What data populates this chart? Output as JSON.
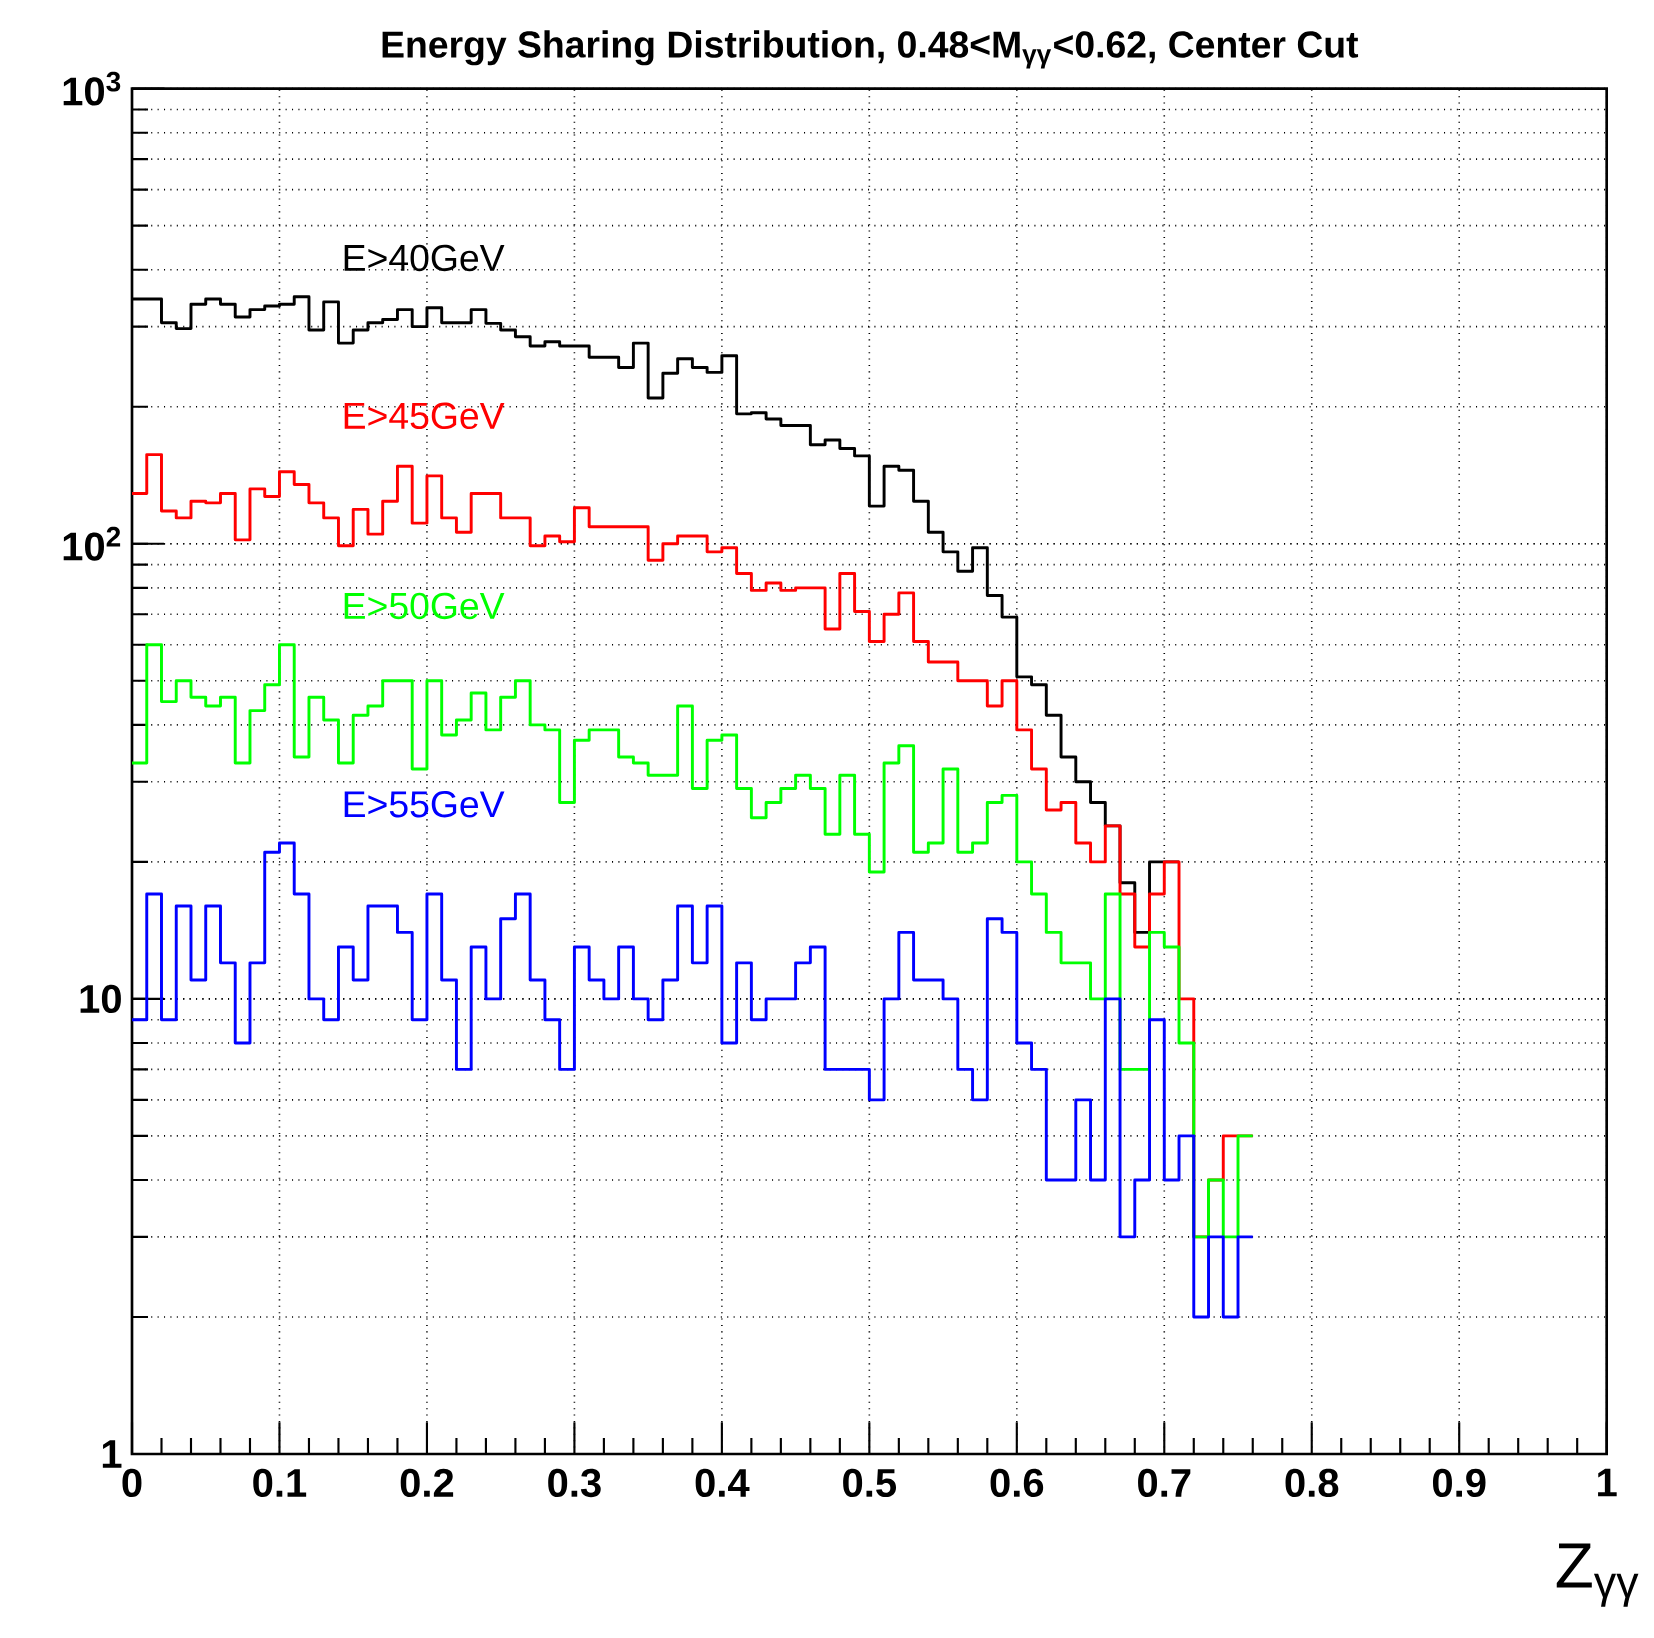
{
  "chart_data": {
    "type": "histogram",
    "title": "Energy Sharing Distribution,  0.48<M$_{γγ}$<0.62, Center Cut",
    "xlabel": "Z$_{γγ}$",
    "bins": [
      0,
      0.01,
      0.02,
      0.03,
      0.04,
      0.05,
      0.06,
      0.07,
      0.08,
      0.09,
      0.1,
      0.11,
      0.12,
      0.13,
      0.14,
      0.15,
      0.16,
      0.17,
      0.18,
      0.19,
      0.2,
      0.21,
      0.22,
      0.23,
      0.24,
      0.25,
      0.26,
      0.27,
      0.28,
      0.29,
      0.3,
      0.31,
      0.32,
      0.33,
      0.34,
      0.35,
      0.36,
      0.37,
      0.38,
      0.39,
      0.4,
      0.41,
      0.42,
      0.43,
      0.44,
      0.45,
      0.46,
      0.47,
      0.48,
      0.49,
      0.5,
      0.51,
      0.52,
      0.53,
      0.54,
      0.55,
      0.56,
      0.57,
      0.58,
      0.59,
      0.6,
      0.61,
      0.62,
      0.63,
      0.64,
      0.65,
      0.66,
      0.67,
      0.68,
      0.69,
      0.7,
      0.71,
      0.72,
      0.73,
      0.74,
      0.75,
      0.76
    ],
    "series": [
      {
        "name": "E>40GeV",
        "color": "#000000",
        "bins": [
          0,
          0.01,
          0.02,
          0.03,
          0.04,
          0.05,
          0.06,
          0.07,
          0.08,
          0.09,
          0.1,
          0.11,
          0.12,
          0.13,
          0.14,
          0.15,
          0.16,
          0.17,
          0.18,
          0.19,
          0.2,
          0.21,
          0.22,
          0.23,
          0.24,
          0.25,
          0.26,
          0.27,
          0.28,
          0.29,
          0.3,
          0.31,
          0.32,
          0.33,
          0.34,
          0.35,
          0.36,
          0.37,
          0.38,
          0.39,
          0.4,
          0.41,
          0.42,
          0.43,
          0.44,
          0.45,
          0.46,
          0.47,
          0.48,
          0.49,
          0.5,
          0.51,
          0.52,
          0.53,
          0.54,
          0.55,
          0.56,
          0.57,
          0.58,
          0.59,
          0.6,
          0.61,
          0.62,
          0.63,
          0.64,
          0.65,
          0.66,
          0.67,
          0.68,
          0.69,
          0.7,
          0.71
        ],
        "values": [
          345,
          345,
          306,
          297,
          336,
          345,
          336,
          315,
          327,
          333,
          336,
          349,
          295,
          340,
          276,
          295,
          306,
          311,
          327,
          300,
          330,
          306,
          306,
          327,
          305,
          295,
          285,
          272,
          278,
          272,
          272,
          257,
          257,
          244,
          276,
          209,
          237,
          255,
          244,
          238,
          259,
          193,
          194,
          188,
          182,
          182,
          165,
          169,
          162,
          156,
          121,
          148,
          145,
          124,
          106,
          96,
          87,
          98,
          77,
          69,
          51,
          49,
          42,
          34,
          30,
          27,
          24,
          18,
          14,
          20,
          20
        ]
      },
      {
        "name": "E>45GeV",
        "color": "#ff0000",
        "values": [
          129,
          157,
          118,
          114,
          124,
          123,
          129,
          102,
          132,
          127,
          144,
          135,
          123,
          114,
          99,
          119,
          105,
          124,
          148,
          111,
          141,
          114,
          106,
          129,
          129,
          114,
          114,
          99,
          104,
          101,
          120,
          109,
          109,
          109,
          109,
          92,
          100,
          104,
          104,
          96,
          98,
          86,
          79,
          82,
          79,
          80,
          80,
          65,
          86,
          71,
          61,
          70,
          78,
          61,
          55,
          55,
          50,
          50,
          44,
          50,
          39,
          32,
          26,
          27,
          22,
          20,
          24,
          17,
          13,
          17,
          20,
          10,
          3,
          4,
          5,
          5
        ]
      },
      {
        "name": "E>50GeV",
        "color": "#00ff00",
        "values": [
          33,
          60,
          45,
          50,
          46,
          44,
          46,
          33,
          43,
          49,
          60,
          34,
          46,
          41,
          33,
          42,
          44,
          50,
          50,
          32,
          50,
          38,
          41,
          47,
          39,
          46,
          50,
          40,
          39,
          27,
          37,
          39,
          39,
          34,
          33,
          31,
          31,
          44,
          29,
          37,
          38,
          29,
          25,
          27,
          29,
          31,
          29,
          23,
          31,
          23,
          19,
          33,
          36,
          21,
          22,
          32,
          21,
          22,
          27,
          28,
          20,
          17,
          14,
          12,
          12,
          10,
          17,
          7,
          7,
          14,
          13,
          8,
          3,
          4,
          3,
          5
        ]
      },
      {
        "name": "E>55GeV",
        "color": "#0000ff",
        "values": [
          9,
          17,
          9,
          16,
          11,
          16,
          12,
          8,
          12,
          21,
          22,
          17,
          10,
          9,
          13,
          11,
          16,
          16,
          14,
          9,
          17,
          11,
          7,
          13,
          10,
          15,
          17,
          11,
          9,
          7,
          13,
          11,
          10,
          13,
          10,
          9,
          11,
          16,
          12,
          16,
          8,
          12,
          9,
          10,
          10,
          12,
          13,
          7,
          7,
          7,
          6,
          10,
          14,
          11,
          11,
          10,
          7,
          6,
          15,
          14,
          8,
          7,
          4,
          4,
          6,
          4,
          10,
          3,
          4,
          9,
          4,
          5,
          2,
          3,
          2,
          3
        ]
      }
    ],
    "xlim": [
      0,
      1
    ],
    "xticks": [
      0,
      0.1,
      0.2,
      0.3,
      0.4,
      0.5,
      0.6,
      0.7,
      0.8,
      0.9,
      1
    ],
    "ylim": [
      1,
      1000
    ],
    "yticks": [
      1,
      10,
      {
        "value": 100,
        "label": "10$^{2}$"
      },
      {
        "value": 1000,
        "label": "10$^{3}$"
      }
    ],
    "log": "y",
    "grid": true
  }
}
